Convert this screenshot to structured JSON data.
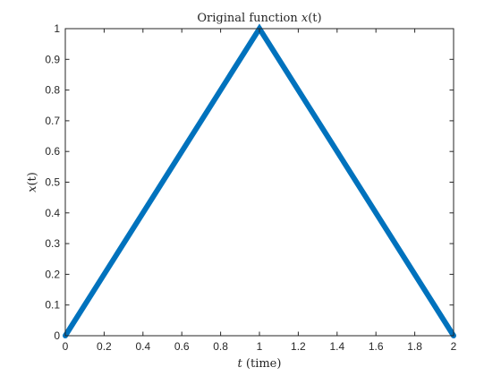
{
  "chart_data": {
    "type": "line",
    "title": {
      "prefix": "Original function ",
      "math": "x",
      "suffix": "(t)"
    },
    "xlabel": {
      "math": "t",
      "suffix": " (time)"
    },
    "ylabel": {
      "math": "x",
      "suffix": "(t)"
    },
    "xlim": [
      0,
      2
    ],
    "ylim": [
      0,
      1
    ],
    "x_ticks": [
      "0",
      "0.2",
      "0.4",
      "0.6",
      "0.8",
      "1",
      "1.2",
      "1.4",
      "1.6",
      "1.8",
      "2"
    ],
    "y_ticks": [
      "0",
      "0.1",
      "0.2",
      "0.3",
      "0.4",
      "0.5",
      "0.6",
      "0.7",
      "0.8",
      "0.9",
      "1"
    ],
    "grid": false,
    "series": [
      {
        "x": [
          0,
          1,
          2
        ],
        "y": [
          0,
          1,
          0
        ],
        "color": "#0072BD"
      }
    ]
  }
}
